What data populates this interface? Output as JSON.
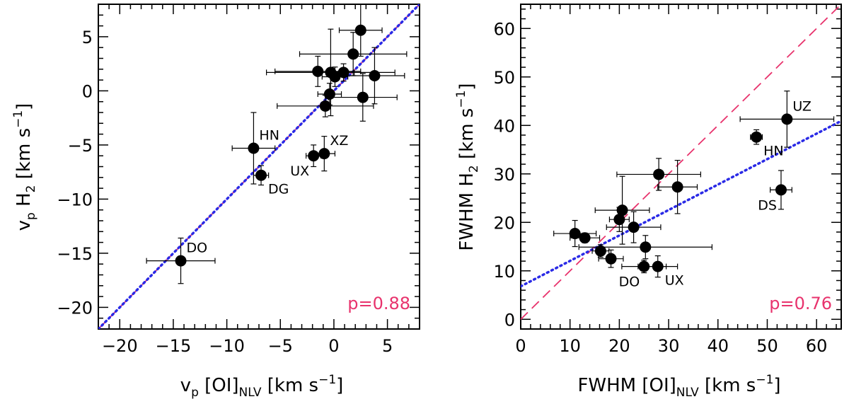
{
  "chart_data": [
    {
      "type": "scatter",
      "xlim": [
        -22,
        8
      ],
      "ylim": [
        -22,
        8
      ],
      "x_ticks": [
        -20,
        -15,
        -10,
        -5,
        0,
        5
      ],
      "y_ticks": [
        -20,
        -15,
        -10,
        -5,
        0,
        5
      ],
      "x_tick_labels": [
        "−20",
        "−15",
        "−10",
        "−5",
        "0",
        "5"
      ],
      "y_tick_labels": [
        "−20",
        "−15",
        "−10",
        "−5",
        "0",
        "5"
      ],
      "xlabel": {
        "main": "v",
        "sub_p": "p",
        "mid": " [OI]",
        "sub_nlv": "NLV",
        "unit": " [km s",
        "exp": "−1",
        "close": "]"
      },
      "ylabel": {
        "main": "v",
        "sub_p": "p",
        "mid": " H",
        "sub_2": "2",
        "unit": " [km s",
        "exp": "−1",
        "close": "]"
      },
      "correlation_text": "p=0.88",
      "colors": {
        "correlation": "#e8336d",
        "fit": "#2a2ae6",
        "one_to_one": "#e8336d"
      },
      "one_to_one_line": {
        "style": "dashed",
        "color": "#e8336d"
      },
      "fit_line": {
        "style": "dotted",
        "color": "#2a2ae6",
        "slope": 1.0,
        "intercept": 0.0
      },
      "points": [
        {
          "x": 2.5,
          "y": 5.6,
          "xerr": 2.0,
          "yerr": 2.4
        },
        {
          "x": 1.8,
          "y": 3.4,
          "xerr": 5.0,
          "yerr": 2.0
        },
        {
          "x": -1.5,
          "y": 1.8,
          "xerr": 4.0,
          "yerr": 1.4
        },
        {
          "x": -0.3,
          "y": 1.7,
          "xerr": 6.0,
          "yerr": 4.0
        },
        {
          "x": 0.1,
          "y": 1.3,
          "xerr": 1.2,
          "yerr": 0.9
        },
        {
          "x": 0.9,
          "y": 1.7,
          "xerr": 1.0,
          "yerr": 0.8
        },
        {
          "x": 3.8,
          "y": 1.4,
          "xerr": 2.8,
          "yerr": 2.6
        },
        {
          "x": -0.4,
          "y": -0.3,
          "xerr": 1.1,
          "yerr": 1.0
        },
        {
          "x": 2.7,
          "y": -0.6,
          "xerr": 3.2,
          "yerr": 2.2
        },
        {
          "x": -0.8,
          "y": -1.4,
          "xerr": 4.5,
          "yerr": 1.0
        },
        {
          "x": -7.5,
          "y": -5.3,
          "xerr": 2.0,
          "yerr": 3.3,
          "label": "HN",
          "label_pos": "upper-right"
        },
        {
          "x": -6.8,
          "y": -7.8,
          "xerr": 0.7,
          "yerr": 0.9,
          "label": "DG",
          "label_pos": "lower-right"
        },
        {
          "x": -1.9,
          "y": -6.0,
          "xerr": 0.7,
          "yerr": 1.0,
          "label": "UX",
          "label_pos": "lower-left"
        },
        {
          "x": -0.9,
          "y": -5.8,
          "xerr": 1.0,
          "yerr": 1.6,
          "label": "XZ",
          "label_pos": "upper-right"
        },
        {
          "x": -14.3,
          "y": -15.7,
          "xerr": 3.2,
          "yerr": 2.1,
          "label": "DO",
          "label_pos": "upper-right"
        }
      ]
    },
    {
      "type": "scatter",
      "xlim": [
        0,
        65
      ],
      "ylim": [
        -2,
        65
      ],
      "x_ticks": [
        0,
        10,
        20,
        30,
        40,
        50,
        60
      ],
      "y_ticks": [
        0,
        10,
        20,
        30,
        40,
        50,
        60
      ],
      "x_tick_labels": [
        "0",
        "10",
        "20",
        "30",
        "40",
        "50",
        "60"
      ],
      "y_tick_labels": [
        "0",
        "10",
        "20",
        "30",
        "40",
        "50",
        "60"
      ],
      "xlabel": {
        "main": "FWHM",
        "mid": " [OI]",
        "sub_nlv": "NLV",
        "unit": " [km s",
        "exp": "−1",
        "close": "]"
      },
      "ylabel": {
        "main": "FWHM H",
        "sub_2": "2",
        "unit": " [km s",
        "exp": "−1",
        "close": "]"
      },
      "correlation_text": "p=0.76",
      "colors": {
        "correlation": "#e8336d",
        "fit": "#2a2ae6",
        "one_to_one": "#e8336d"
      },
      "one_to_one_line": {
        "style": "dashed",
        "color": "#e8336d"
      },
      "fit_line": {
        "style": "dotted",
        "color": "#2a2ae6",
        "slope": 0.525,
        "intercept": 6.8
      },
      "points": [
        {
          "x": 54.0,
          "y": 41.3,
          "xerr": 9.5,
          "yerr": 5.8,
          "label": "UZ",
          "label_pos": "upper-right"
        },
        {
          "x": 47.8,
          "y": 37.6,
          "xerr": 1.2,
          "yerr": 1.5,
          "label": "HN",
          "label_pos": "lower-right"
        },
        {
          "x": 52.8,
          "y": 26.7,
          "xerr": 2.2,
          "yerr": 4.0,
          "label": "DS",
          "label_pos": "lower-left"
        },
        {
          "x": 28.0,
          "y": 29.9,
          "xerr": 8.5,
          "yerr": 3.3
        },
        {
          "x": 31.8,
          "y": 27.3,
          "xerr": 4.0,
          "yerr": 5.5
        },
        {
          "x": 20.6,
          "y": 22.5,
          "xerr": 5.5,
          "yerr": 7.0
        },
        {
          "x": 20.0,
          "y": 20.6,
          "xerr": 2.0,
          "yerr": 2.5
        },
        {
          "x": 22.9,
          "y": 19.0,
          "xerr": 5.5,
          "yerr": 3.2
        },
        {
          "x": 11.0,
          "y": 17.7,
          "xerr": 4.3,
          "yerr": 2.7
        },
        {
          "x": 13.0,
          "y": 16.8,
          "xerr": 3.0,
          "yerr": 1.0
        },
        {
          "x": 25.3,
          "y": 14.9,
          "xerr": 13.5,
          "yerr": 2.4
        },
        {
          "x": 16.2,
          "y": 14.1,
          "xerr": 1.7,
          "yerr": 1.3
        },
        {
          "x": 18.3,
          "y": 12.5,
          "xerr": 2.5,
          "yerr": 1.8
        },
        {
          "x": 25.0,
          "y": 10.9,
          "xerr": 4.5,
          "yerr": 1.3,
          "label": "DO",
          "label_pos": "lower-left"
        },
        {
          "x": 27.8,
          "y": 10.9,
          "xerr": 4.0,
          "yerr": 2.2,
          "label": "UX",
          "label_pos": "lower-right"
        }
      ]
    }
  ]
}
